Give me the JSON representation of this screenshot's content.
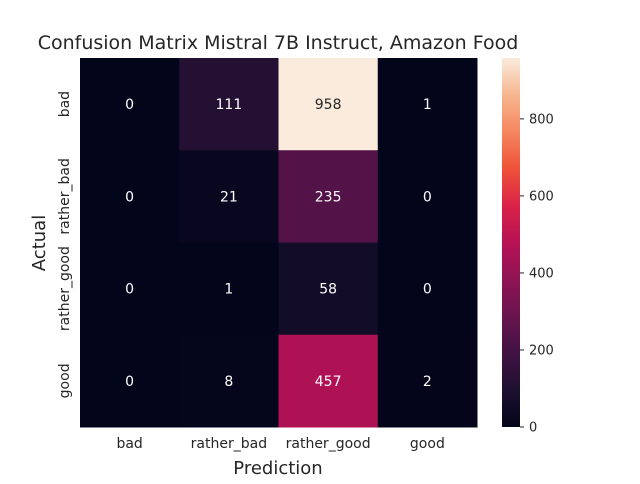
{
  "chart_data": {
    "type": "heatmap",
    "title": "Confusion Matrix Mistral 7B Instruct, Amazon Food",
    "xlabel": "Prediction",
    "ylabel": "Actual",
    "x_categories": [
      "bad",
      "rather_bad",
      "rather_good",
      "good"
    ],
    "y_categories": [
      "bad",
      "rather_bad",
      "rather_good",
      "good"
    ],
    "values": [
      [
        0,
        111,
        958,
        1
      ],
      [
        0,
        21,
        235,
        0
      ],
      [
        0,
        1,
        58,
        0
      ],
      [
        0,
        8,
        457,
        2
      ]
    ],
    "colorbar": {
      "min": 0,
      "max": 958,
      "ticks": [
        0,
        200,
        400,
        600,
        800
      ],
      "colormap": "rocket"
    },
    "grid": false,
    "legend": "colorbar-right"
  }
}
